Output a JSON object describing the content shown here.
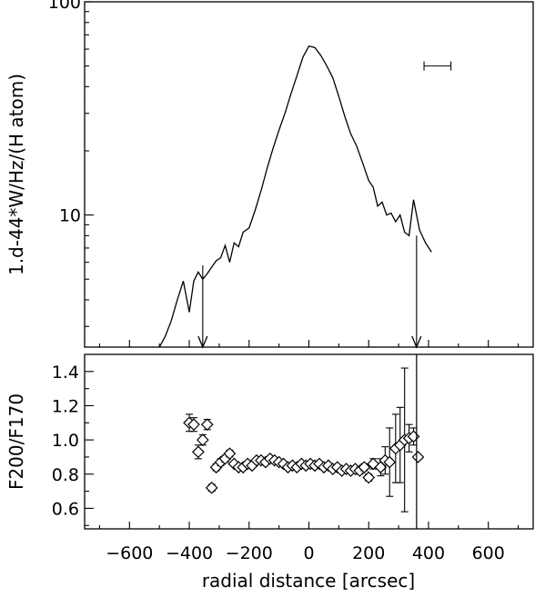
{
  "chart_data": [
    {
      "type": "line",
      "panel": "top",
      "ylabel": "1.d-44*W/Hz/(H atom)",
      "xlabel": "",
      "yscale": "log",
      "xlim": [
        -750,
        750
      ],
      "ylim": [
        2.4,
        100
      ],
      "yticks": [
        {
          "value": 10,
          "label": "10"
        },
        {
          "value": 100,
          "label": "100"
        }
      ],
      "grid": false,
      "series": [
        {
          "x": [
            -500,
            -480,
            -460,
            -440,
            -420,
            -400,
            -385,
            -370,
            -355,
            -340,
            -325,
            -310,
            -295,
            -280,
            -265,
            -250,
            -235,
            -220,
            -200,
            -180,
            -160,
            -140,
            -120,
            -100,
            -80,
            -60,
            -40,
            -20,
            0,
            20,
            40,
            60,
            80,
            100,
            120,
            140,
            160,
            180,
            200,
            215,
            230,
            245,
            260,
            275,
            290,
            305,
            320,
            335,
            350,
            370,
            390,
            410
          ],
          "values": [
            2.4,
            2.7,
            3.2,
            4.0,
            4.9,
            3.5,
            4.9,
            5.4,
            5.0,
            5.3,
            5.7,
            6.1,
            6.3,
            7.2,
            6.0,
            7.4,
            7.1,
            8.3,
            8.7,
            10.5,
            13.0,
            16.5,
            20.5,
            25.0,
            30.0,
            37.0,
            45.0,
            55.0,
            62.0,
            61.0,
            56.0,
            50.0,
            44.0,
            36.0,
            29.0,
            24.0,
            21.0,
            17.5,
            14.5,
            13.5,
            11.0,
            11.5,
            10.0,
            10.2,
            9.3,
            10.0,
            8.3,
            8.0,
            11.8,
            8.5,
            7.4,
            6.7
          ]
        }
      ],
      "error_bar_marker": {
        "x_center": 430,
        "y": 50,
        "half_width": 45
      },
      "arrows": [
        {
          "x": -355,
          "from": 5.8,
          "to": 2.4
        },
        {
          "x": 360,
          "from": 8.0,
          "to": 2.4
        }
      ]
    },
    {
      "type": "scatter",
      "panel": "bottom",
      "xlabel": "radial distance [arcsec]",
      "ylabel": "F200/F170",
      "xlim": [
        -750,
        750
      ],
      "ylim": [
        0.48,
        1.5
      ],
      "xticks": [
        -600,
        -400,
        -200,
        0,
        200,
        400,
        600
      ],
      "xtick_labels": [
        "−600",
        "−400",
        "−200",
        "0",
        "200",
        "400",
        "600"
      ],
      "yticks": [
        0.6,
        0.8,
        1.0,
        1.2,
        1.4
      ],
      "ytick_labels": [
        "0.6",
        "0.8",
        "1.0",
        "1.2",
        "1.4"
      ],
      "marker": "diamond",
      "grid": false,
      "vertical_line_x": 360,
      "points": [
        {
          "x": -400,
          "y": 1.1,
          "err": 0.05
        },
        {
          "x": -385,
          "y": 1.09,
          "err": 0.04
        },
        {
          "x": -370,
          "y": 0.93,
          "err": 0.04
        },
        {
          "x": -355,
          "y": 1.0,
          "err": 0.03
        },
        {
          "x": -340,
          "y": 1.09,
          "err": 0.03
        },
        {
          "x": -325,
          "y": 0.72,
          "err": 0.02
        },
        {
          "x": -310,
          "y": 0.84,
          "err": 0.02
        },
        {
          "x": -295,
          "y": 0.87,
          "err": 0.02
        },
        {
          "x": -280,
          "y": 0.89,
          "err": 0.02
        },
        {
          "x": -265,
          "y": 0.92,
          "err": 0.02
        },
        {
          "x": -250,
          "y": 0.86,
          "err": 0.01
        },
        {
          "x": -235,
          "y": 0.84,
          "err": 0.01
        },
        {
          "x": -220,
          "y": 0.84,
          "err": 0.01
        },
        {
          "x": -205,
          "y": 0.86,
          "err": 0.01
        },
        {
          "x": -190,
          "y": 0.85,
          "err": 0.01
        },
        {
          "x": -175,
          "y": 0.88,
          "err": 0.01
        },
        {
          "x": -160,
          "y": 0.88,
          "err": 0.01
        },
        {
          "x": -145,
          "y": 0.87,
          "err": 0.01
        },
        {
          "x": -130,
          "y": 0.89,
          "err": 0.01
        },
        {
          "x": -115,
          "y": 0.88,
          "err": 0.01
        },
        {
          "x": -100,
          "y": 0.87,
          "err": 0.01
        },
        {
          "x": -85,
          "y": 0.86,
          "err": 0.01
        },
        {
          "x": -70,
          "y": 0.84,
          "err": 0.01
        },
        {
          "x": -55,
          "y": 0.85,
          "err": 0.01
        },
        {
          "x": -40,
          "y": 0.84,
          "err": 0.01
        },
        {
          "x": -25,
          "y": 0.86,
          "err": 0.01
        },
        {
          "x": -10,
          "y": 0.85,
          "err": 0.01
        },
        {
          "x": 5,
          "y": 0.86,
          "err": 0.01
        },
        {
          "x": 20,
          "y": 0.85,
          "err": 0.01
        },
        {
          "x": 35,
          "y": 0.86,
          "err": 0.01
        },
        {
          "x": 50,
          "y": 0.84,
          "err": 0.01
        },
        {
          "x": 65,
          "y": 0.85,
          "err": 0.01
        },
        {
          "x": 80,
          "y": 0.83,
          "err": 0.01
        },
        {
          "x": 95,
          "y": 0.84,
          "err": 0.01
        },
        {
          "x": 110,
          "y": 0.82,
          "err": 0.01
        },
        {
          "x": 125,
          "y": 0.83,
          "err": 0.01
        },
        {
          "x": 140,
          "y": 0.82,
          "err": 0.01
        },
        {
          "x": 155,
          "y": 0.83,
          "err": 0.01
        },
        {
          "x": 170,
          "y": 0.82,
          "err": 0.02
        },
        {
          "x": 185,
          "y": 0.84,
          "err": 0.02
        },
        {
          "x": 200,
          "y": 0.78,
          "err": 0.02
        },
        {
          "x": 215,
          "y": 0.86,
          "err": 0.03
        },
        {
          "x": 240,
          "y": 0.84,
          "err": 0.05
        },
        {
          "x": 255,
          "y": 0.88,
          "err": 0.08
        },
        {
          "x": 270,
          "y": 0.87,
          "err": 0.2
        },
        {
          "x": 290,
          "y": 0.95,
          "err": 0.2
        },
        {
          "x": 305,
          "y": 0.97,
          "err": 0.22
        },
        {
          "x": 320,
          "y": 1.0,
          "err": 0.42
        },
        {
          "x": 335,
          "y": 1.01,
          "err": 0.08
        },
        {
          "x": 350,
          "y": 1.02,
          "err": 0.05
        },
        {
          "x": 365,
          "y": 0.9,
          "err": 0.0
        }
      ]
    }
  ]
}
